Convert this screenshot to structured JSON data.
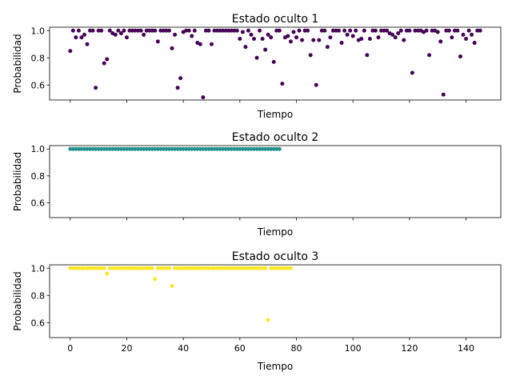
{
  "chart_data": [
    {
      "type": "scatter",
      "title": "Estado oculto 1",
      "xlabel": "Tiempo",
      "ylabel": "Probabilidad",
      "xlim": [
        -7.3,
        152.3
      ],
      "ylim": [
        0.49,
        1.025
      ],
      "xticks": [
        0,
        20,
        40,
        60,
        80,
        100,
        120,
        140
      ],
      "show_xtick_labels": false,
      "yticks": [
        0.6,
        0.8,
        1.0
      ],
      "ytick_labels": [
        "0.6",
        "0.8",
        "1.0"
      ],
      "color": "#440154",
      "series": [
        {
          "x": [
            0,
            1,
            2,
            3,
            4,
            5,
            6,
            7,
            8,
            9,
            10,
            11,
            12,
            13,
            14,
            15,
            16,
            17,
            18,
            19,
            20,
            21,
            22,
            23,
            24,
            25,
            26,
            27,
            28,
            29,
            30,
            31,
            32,
            33,
            34,
            35,
            36,
            37,
            38,
            39,
            40,
            41,
            42,
            43,
            44,
            45,
            46,
            47,
            48,
            49,
            50,
            51,
            52,
            53,
            54,
            55,
            56,
            57,
            58,
            59,
            60,
            61,
            62,
            63,
            64,
            65,
            66,
            67,
            68,
            69,
            70,
            71,
            72,
            73,
            74,
            75,
            76,
            77,
            78,
            79,
            80,
            81,
            82,
            83,
            84,
            85,
            86,
            87,
            88,
            89,
            90,
            91,
            92,
            93,
            94,
            95,
            96,
            97,
            98,
            99,
            100,
            101,
            102,
            103,
            104,
            105,
            106,
            107,
            108,
            109,
            110,
            111,
            112,
            113,
            114,
            115,
            116,
            117,
            118,
            119,
            120,
            121,
            122,
            123,
            124,
            125,
            126,
            127,
            128,
            129,
            130,
            131,
            132,
            133,
            134,
            135,
            136,
            137,
            138,
            139,
            140,
            141,
            142,
            143,
            144,
            145
          ],
          "y": [
            0.85,
            1.0,
            0.95,
            1.0,
            0.95,
            0.97,
            0.9,
            1.0,
            1.0,
            0.58,
            1.0,
            1.0,
            0.76,
            0.79,
            1.0,
            0.98,
            0.97,
            1.0,
            0.98,
            1.0,
            0.95,
            1.0,
            1.0,
            1.0,
            1.0,
            1.0,
            0.97,
            1.0,
            1.0,
            1.0,
            1.0,
            0.92,
            1.0,
            1.0,
            1.0,
            1.0,
            0.87,
            0.97,
            0.58,
            0.65,
            0.99,
            1.0,
            1.0,
            0.96,
            1.0,
            0.91,
            0.9,
            0.51,
            1.0,
            1.0,
            0.9,
            1.0,
            1.0,
            1.0,
            1.0,
            1.0,
            1.0,
            1.0,
            1.0,
            1.0,
            0.94,
            0.99,
            0.88,
            1.0,
            0.97,
            0.94,
            0.8,
            1.0,
            0.94,
            0.86,
            0.97,
            0.95,
            0.77,
            1.0,
            1.0,
            0.61,
            0.95,
            0.96,
            0.92,
            0.99,
            0.95,
            1.0,
            0.93,
            1.0,
            1.0,
            0.82,
            0.93,
            0.6,
            0.93,
            1.0,
            1.0,
            0.88,
            0.95,
            1.0,
            1.0,
            1.0,
            0.91,
            1.0,
            0.97,
            1.0,
            0.96,
            1.0,
            0.93,
            0.94,
            1.0,
            0.82,
            0.94,
            1.0,
            1.0,
            0.95,
            1.0,
            1.0,
            1.0,
            0.98,
            0.97,
            0.95,
            0.98,
            1.0,
            0.93,
            1.0,
            1.0,
            0.69,
            1.0,
            1.0,
            1.0,
            0.99,
            1.0,
            0.82,
            1.0,
            1.0,
            0.99,
            0.92,
            0.53,
            1.0,
            1.0,
            0.95,
            1.0,
            1.0,
            0.81,
            0.97,
            0.94,
            1.0,
            0.97,
            0.91,
            1.0,
            1.0
          ]
        }
      ]
    },
    {
      "type": "scatter",
      "title": "Estado oculto 2",
      "xlabel": "Tiempo",
      "ylabel": "Probabilidad",
      "xlim": [
        -7.3,
        152.3
      ],
      "ylim": [
        0.49,
        1.025
      ],
      "xticks": [
        0,
        20,
        40,
        60,
        80,
        100,
        120,
        140
      ],
      "show_xtick_labels": false,
      "yticks": [
        0.6,
        0.8,
        1.0
      ],
      "ytick_labels": [
        "0.6",
        "0.8",
        "1.0"
      ],
      "color": "#21918c",
      "series": [
        {
          "x": [
            0,
            1,
            2,
            3,
            4,
            5,
            6,
            7,
            8,
            9,
            10,
            11,
            12,
            13,
            14,
            15,
            16,
            17,
            18,
            19,
            20,
            21,
            22,
            23,
            24,
            25,
            26,
            27,
            28,
            29,
            30,
            31,
            32,
            33,
            34,
            35,
            36,
            37,
            38,
            39,
            40,
            41,
            42,
            43,
            44,
            45,
            46,
            47,
            48,
            49,
            50,
            51,
            52,
            53,
            54,
            55,
            56,
            57,
            58,
            59,
            60,
            61,
            62,
            63,
            64,
            65,
            66,
            67,
            68,
            69,
            70,
            71,
            72,
            73,
            74
          ],
          "y": [
            1.0,
            1.0,
            1.0,
            1.0,
            1.0,
            1.0,
            1.0,
            1.0,
            1.0,
            1.0,
            1.0,
            1.0,
            1.0,
            1.0,
            1.0,
            1.0,
            1.0,
            1.0,
            1.0,
            1.0,
            1.0,
            1.0,
            1.0,
            1.0,
            1.0,
            1.0,
            1.0,
            1.0,
            1.0,
            1.0,
            1.0,
            1.0,
            1.0,
            1.0,
            1.0,
            1.0,
            1.0,
            1.0,
            1.0,
            1.0,
            1.0,
            1.0,
            1.0,
            1.0,
            1.0,
            1.0,
            1.0,
            1.0,
            1.0,
            1.0,
            1.0,
            1.0,
            1.0,
            1.0,
            1.0,
            1.0,
            1.0,
            1.0,
            1.0,
            1.0,
            1.0,
            1.0,
            1.0,
            1.0,
            1.0,
            1.0,
            1.0,
            1.0,
            1.0,
            1.0,
            1.0,
            1.0,
            1.0,
            1.0,
            1.0
          ]
        }
      ]
    },
    {
      "type": "scatter",
      "title": "Estado oculto 3",
      "xlabel": "Tiempo",
      "ylabel": "Probabilidad",
      "xlim": [
        -7.3,
        152.3
      ],
      "ylim": [
        0.49,
        1.025
      ],
      "xticks": [
        0,
        20,
        40,
        60,
        80,
        100,
        120,
        140
      ],
      "xtick_labels": [
        "0",
        "20",
        "40",
        "60",
        "80",
        "100",
        "120",
        "140"
      ],
      "show_xtick_labels": true,
      "yticks": [
        0.6,
        0.8,
        1.0
      ],
      "ytick_labels": [
        "0.6",
        "0.8",
        "1.0"
      ],
      "color": "#fde725",
      "series": [
        {
          "x": [
            0,
            1,
            2,
            3,
            4,
            5,
            6,
            7,
            8,
            9,
            10,
            11,
            12,
            13,
            14,
            15,
            16,
            17,
            18,
            19,
            20,
            21,
            22,
            23,
            24,
            25,
            26,
            27,
            28,
            29,
            30,
            31,
            32,
            33,
            34,
            35,
            36,
            37,
            38,
            39,
            40,
            41,
            42,
            43,
            44,
            45,
            46,
            47,
            48,
            49,
            50,
            51,
            52,
            53,
            54,
            55,
            56,
            57,
            58,
            59,
            60,
            61,
            62,
            63,
            64,
            65,
            66,
            67,
            68,
            69,
            70,
            71,
            72,
            73,
            74,
            75,
            76,
            77,
            78
          ],
          "y": [
            1.0,
            1.0,
            1.0,
            1.0,
            1.0,
            1.0,
            1.0,
            1.0,
            1.0,
            1.0,
            1.0,
            1.0,
            1.0,
            0.96,
            1.0,
            1.0,
            1.0,
            1.0,
            1.0,
            1.0,
            1.0,
            1.0,
            1.0,
            1.0,
            1.0,
            1.0,
            1.0,
            1.0,
            1.0,
            1.0,
            0.92,
            1.0,
            1.0,
            1.0,
            1.0,
            1.0,
            0.87,
            1.0,
            1.0,
            1.0,
            1.0,
            1.0,
            1.0,
            1.0,
            1.0,
            1.0,
            1.0,
            1.0,
            1.0,
            1.0,
            1.0,
            1.0,
            1.0,
            1.0,
            1.0,
            1.0,
            1.0,
            1.0,
            1.0,
            1.0,
            1.0,
            1.0,
            1.0,
            1.0,
            1.0,
            1.0,
            1.0,
            1.0,
            1.0,
            1.0,
            0.62,
            1.0,
            1.0,
            1.0,
            1.0,
            1.0,
            1.0,
            1.0,
            1.0
          ]
        }
      ]
    }
  ]
}
